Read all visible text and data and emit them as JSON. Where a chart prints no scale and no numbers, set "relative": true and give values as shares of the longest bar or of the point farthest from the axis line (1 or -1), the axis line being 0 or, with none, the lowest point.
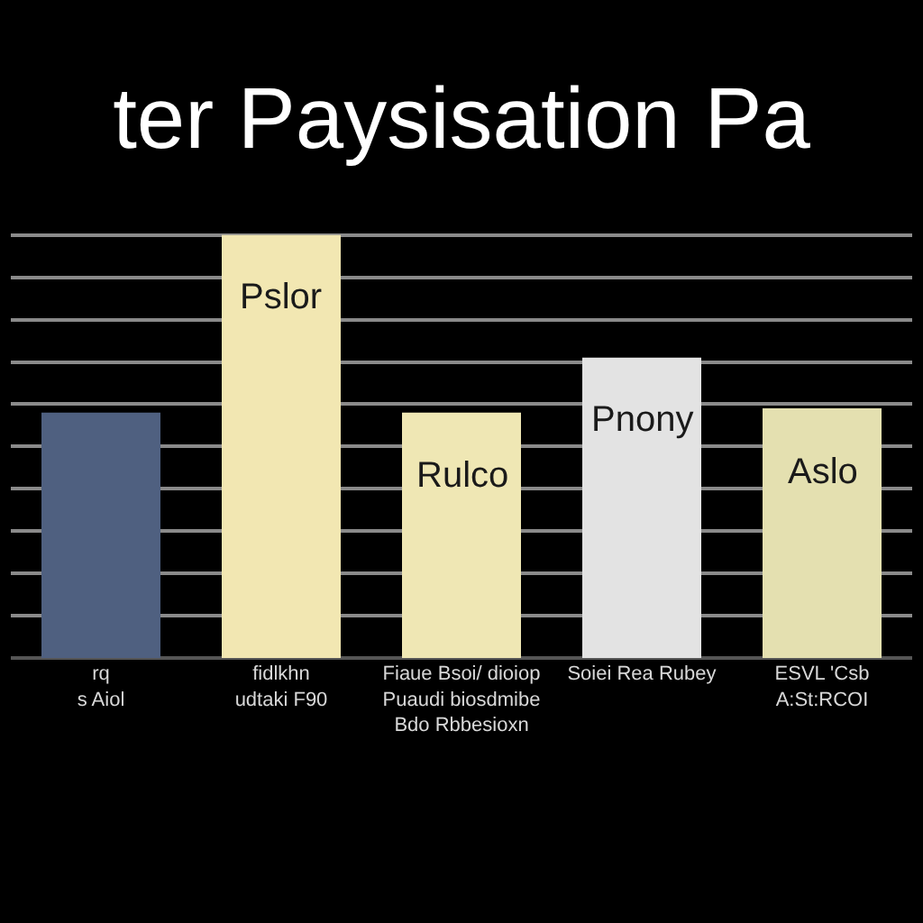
{
  "chart_data": {
    "type": "bar",
    "title": "ter Paysisation Pa",
    "categories": [
      "rq\ns Aiol",
      "fidlkhn\nudtaki F90",
      "Fiaue Bsoi/ dioiop\nPuaudi biosdmibe\nBdo Rbbesioxn",
      "Soiei Rea Rubey",
      "ESVL 'Csb\nA:St:RCOI"
    ],
    "values": [
      0.58,
      1,
      0.58,
      0.71,
      0.59
    ],
    "colors": [
      "#4f6080",
      "#f2e7b2",
      "#efe7b4",
      "#e3e3e3",
      "#e4e0b0"
    ],
    "annotations": [
      {
        "text": "Pslor",
        "x": "fidlkhn\nudtaki F90",
        "y": 1
      },
      {
        "text": "Rulco",
        "x": "Fiaue Bsoi/ dioiop\nPuaudi biosdmibe\nBdo Rbbesioxn",
        "y": 0.58
      },
      {
        "text": "Pnony",
        "x": "Soiei Rea Rubey",
        "y": 0.71
      },
      {
        "text": "Aslo",
        "x": "ESVL 'Csb\nA:St:RCOI",
        "y": 0.59
      }
    ],
    "relative": true,
    "grid": "y"
  }
}
